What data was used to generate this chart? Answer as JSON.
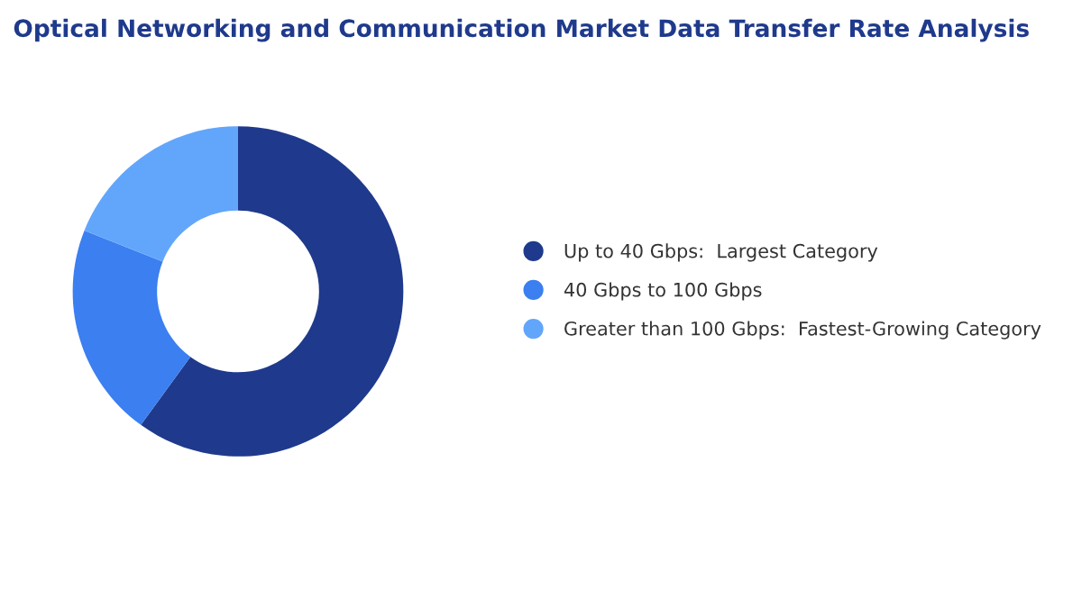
{
  "chart_data": {
    "type": "donut",
    "title": "Optical Networking and Communication Market Data Transfer Rate Analysis",
    "categories": [
      "Up to 40 Gbps:  Largest Category",
      "40 Gbps to 100 Gbps",
      "Greater than 100 Gbps:  Fastest-Growing Category"
    ],
    "values": [
      60,
      21,
      19
    ],
    "colors": [
      "#1f3a8c",
      "#3b7ff0",
      "#62a6fb"
    ],
    "legend": "right"
  }
}
